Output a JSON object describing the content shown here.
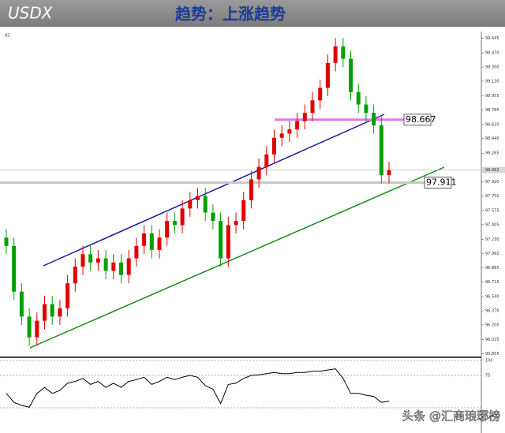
{
  "header": {
    "title": "USDX",
    "subtitle": "趋势：上涨趋势"
  },
  "chart_data": {
    "type": "candlestick",
    "corner_label": "82",
    "open": [
      97.25,
      97.15,
      96.6,
      96.3,
      96.05,
      96.25,
      96.45,
      96.3,
      96.4,
      96.7,
      96.9,
      97.05,
      96.95,
      97.0,
      96.85,
      96.95,
      96.8,
      97.0,
      97.15,
      97.3,
      97.1,
      97.25,
      97.45,
      97.4,
      97.6,
      97.7,
      97.75,
      97.55,
      97.45,
      97.0,
      97.4,
      97.45,
      97.7,
      97.95,
      98.1,
      98.25,
      98.45,
      98.5,
      98.55,
      98.65,
      98.75,
      98.9,
      99.05,
      99.35,
      99.55,
      99.4,
      99.0,
      98.85,
      98.75,
      98.6,
      98.0
    ],
    "high": [
      97.35,
      97.25,
      96.7,
      96.4,
      96.35,
      96.55,
      96.55,
      96.5,
      96.8,
      97.0,
      97.15,
      97.15,
      97.1,
      97.1,
      97.05,
      97.05,
      97.1,
      97.25,
      97.4,
      97.4,
      97.35,
      97.55,
      97.55,
      97.7,
      97.8,
      97.85,
      97.85,
      97.65,
      97.55,
      97.5,
      97.55,
      97.8,
      98.05,
      98.2,
      98.35,
      98.55,
      98.6,
      98.65,
      98.75,
      98.85,
      99.0,
      99.15,
      99.45,
      99.65,
      99.65,
      99.5,
      99.1,
      98.95,
      98.85,
      98.7,
      98.16
    ],
    "low": [
      97.05,
      96.5,
      96.2,
      95.95,
      95.95,
      96.15,
      96.2,
      96.2,
      96.3,
      96.6,
      96.8,
      96.85,
      96.85,
      96.75,
      96.75,
      96.7,
      96.7,
      96.9,
      97.05,
      97.0,
      97.0,
      97.15,
      97.3,
      97.3,
      97.5,
      97.6,
      97.45,
      97.35,
      96.9,
      96.9,
      97.3,
      97.35,
      97.6,
      97.85,
      98.0,
      98.15,
      98.35,
      98.4,
      98.45,
      98.55,
      98.65,
      98.8,
      98.95,
      99.25,
      99.3,
      98.9,
      98.75,
      98.65,
      98.5,
      97.9,
      97.9
    ],
    "close": [
      97.15,
      96.6,
      96.3,
      96.05,
      96.25,
      96.45,
      96.3,
      96.4,
      96.7,
      96.9,
      97.05,
      96.95,
      97.0,
      96.85,
      96.95,
      96.8,
      97.0,
      97.15,
      97.3,
      97.1,
      97.25,
      97.45,
      97.4,
      97.6,
      97.7,
      97.75,
      97.55,
      97.45,
      97.0,
      97.4,
      97.45,
      97.7,
      97.95,
      98.1,
      98.25,
      98.45,
      98.5,
      98.55,
      98.65,
      98.75,
      98.9,
      99.05,
      99.35,
      99.55,
      99.4,
      99.0,
      98.85,
      98.75,
      98.6,
      98.0,
      98.06
    ],
    "up_color": "#e00000",
    "down_color": "#00a000",
    "ylim": [
      95.82,
      99.68
    ],
    "yticks": [
      {
        "value": 99.645,
        "label": "99.645"
      },
      {
        "value": 99.47,
        "label": "99.470"
      },
      {
        "value": 99.3,
        "label": "99.300"
      },
      {
        "value": 99.13,
        "label": "99.130"
      },
      98.955,
      98.785,
      {
        "value": 98.61,
        "label": "98.610"
      },
      {
        "value": 98.44,
        "label": "98.440"
      },
      98.265,
      {
        "value": 97.92,
        "label": "97.920"
      },
      {
        "value": 97.75,
        "label": "97.750"
      },
      97.575,
      97.405,
      {
        "value": 97.23,
        "label": "97.230"
      },
      {
        "value": 97.06,
        "label": "97.060"
      },
      96.885,
      96.715,
      {
        "value": 96.54,
        "label": "96.540"
      },
      {
        "value": 96.37,
        "label": "96.370"
      },
      {
        "value": 96.2,
        "label": "96.200"
      },
      96.025,
      95.855
    ],
    "current_price": 98.062,
    "levels": [
      {
        "value": 98.667,
        "color": "#e07ae0"
      },
      {
        "value": 97.911,
        "color": "#c8c8c8"
      }
    ],
    "indicator": {
      "values": [
        45,
        30,
        25,
        22,
        45,
        55,
        45,
        50,
        62,
        65,
        70,
        60,
        65,
        55,
        62,
        55,
        65,
        68,
        72,
        60,
        65,
        72,
        68,
        72,
        75,
        72,
        58,
        52,
        28,
        60,
        62,
        70,
        75,
        76,
        78,
        80,
        78,
        78,
        80,
        80,
        82,
        82,
        84,
        86,
        70,
        45,
        45,
        42,
        40,
        30,
        32
      ],
      "color": "#000000",
      "ylim": [
        0,
        100
      ],
      "yticks": [
        100,
        75
      ]
    }
  },
  "watermark": "头条 @汇商琅琊榜"
}
